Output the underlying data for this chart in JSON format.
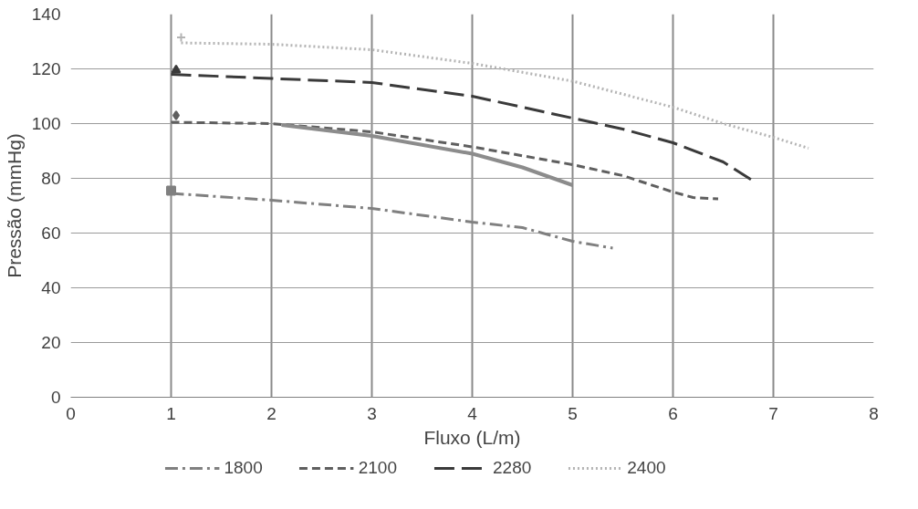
{
  "chart_data": {
    "type": "line",
    "xlabel": "Fluxo (L/m)",
    "ylabel": "Pressão (mmHg)",
    "xlim": [
      0,
      8
    ],
    "xticks": [
      0,
      1,
      2,
      3,
      4,
      5,
      6,
      7,
      8
    ],
    "ylim": [
      0,
      140
    ],
    "yticks": [
      0,
      20,
      40,
      60,
      80,
      100,
      120,
      140
    ],
    "grid": true,
    "legend": "bottom",
    "series": [
      {
        "name": "1800",
        "color": "#808080",
        "line_style": "dashdot",
        "x": [
          1,
          2,
          3,
          4,
          4.5,
          5,
          5.4
        ],
        "values": [
          74.5,
          72,
          69,
          64,
          62,
          57,
          54.5
        ]
      },
      {
        "name": "2100",
        "color": "#5f5f5f",
        "line_style": "dashed",
        "x": [
          1,
          2,
          3,
          4,
          5,
          5.5,
          6,
          6.2,
          6.45
        ],
        "values": [
          100.5,
          100,
          97,
          91.5,
          85,
          81,
          75,
          73,
          72.5
        ]
      },
      {
        "name": "2280",
        "color": "#3a3a3a",
        "line_style": "longdash",
        "x": [
          1,
          2,
          3,
          4,
          5,
          5.5,
          6,
          6.5,
          6.8
        ],
        "values": [
          118,
          116.5,
          115,
          110,
          102,
          98,
          93,
          86,
          79
        ]
      },
      {
        "name": "2400",
        "color": "#b4b4b4",
        "line_style": "dotted",
        "x": [
          1.1,
          2,
          3,
          4,
          5,
          6,
          6.5,
          7,
          7.35
        ],
        "values": [
          129.5,
          129,
          127,
          122,
          115.5,
          106,
          100,
          95,
          91
        ]
      },
      {
        "color": "#8c8c8c",
        "line_style": "solid",
        "x": [
          2.1,
          3,
          4,
          4.5,
          5
        ],
        "values": [
          99.5,
          95.5,
          89,
          84,
          77.5
        ]
      },
      {
        "type": "scatter",
        "marker": "square",
        "color": "#808080",
        "x": [
          1
        ],
        "values": [
          75.5
        ]
      },
      {
        "type": "scatter",
        "marker": "diamond",
        "color": "#5f5f5f",
        "x": [
          1.05
        ],
        "values": [
          103
        ]
      },
      {
        "type": "scatter",
        "marker": "triangle",
        "color": "#3a3a3a",
        "x": [
          1.05
        ],
        "values": [
          119.5
        ]
      },
      {
        "type": "scatter",
        "marker": "cross",
        "color": "#b4b4b4",
        "x": [
          1.1
        ],
        "values": [
          131.5
        ]
      }
    ]
  }
}
